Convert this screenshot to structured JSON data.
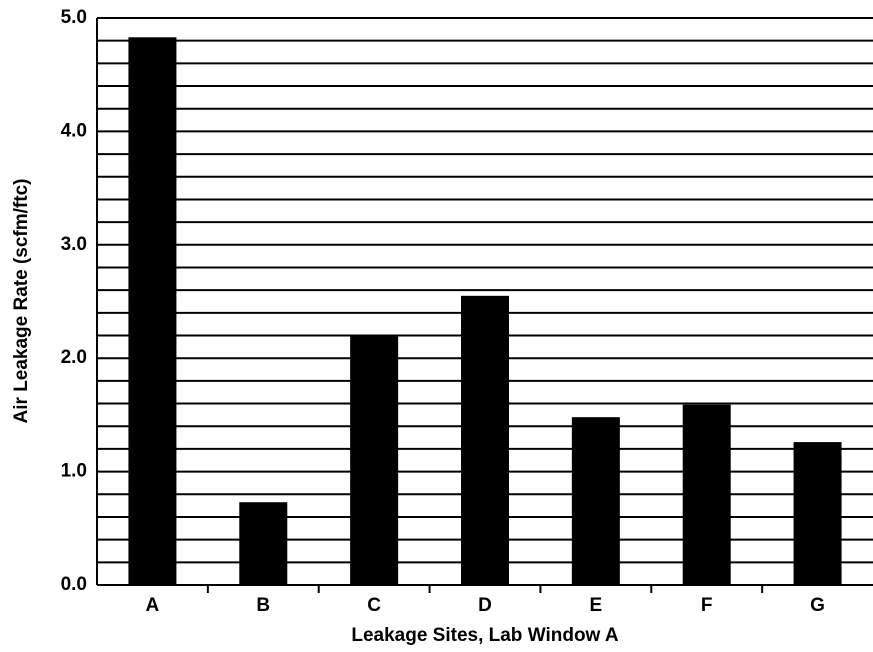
{
  "chart_data": {
    "type": "bar",
    "x_label": "Leakage Sites, Lab Window A",
    "y_label": "Air Leakage Rate (scfm/ftc)",
    "categories": [
      "A",
      "B",
      "C",
      "D",
      "E",
      "F",
      "G"
    ],
    "values": [
      4.83,
      0.73,
      2.2,
      2.55,
      1.48,
      1.59,
      1.26
    ],
    "color": "#000000",
    "ylim": [
      0,
      5
    ],
    "yticks": [
      {
        "value": 0,
        "label": "0.0"
      },
      {
        "value": 1,
        "label": "1.0"
      },
      {
        "value": 2,
        "label": "2.0"
      },
      {
        "value": 3,
        "label": "3.0"
      },
      {
        "value": 4,
        "label": "4.0"
      },
      {
        "value": 5,
        "label": "5.0"
      }
    ],
    "minor_yticks": [
      0.2,
      0.4,
      0.6,
      0.8,
      1.2,
      1.4,
      1.6,
      1.8,
      2.2,
      2.4,
      2.6,
      2.8,
      3.2,
      3.4,
      3.6,
      3.8,
      4.2,
      4.4,
      4.6,
      4.8
    ],
    "grid": true
  }
}
